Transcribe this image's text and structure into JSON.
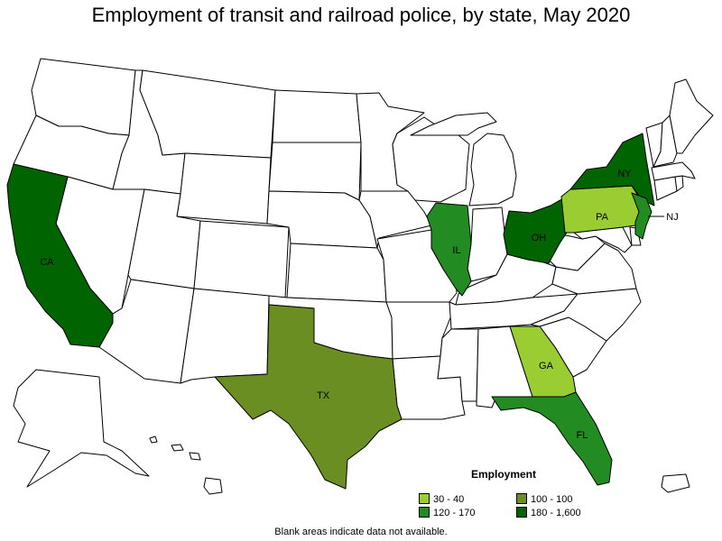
{
  "title": "Employment of transit and railroad police, by state, May 2020",
  "legend": {
    "title": "Employment",
    "items": [
      {
        "label": "30 - 40",
        "color": "#9acd32"
      },
      {
        "label": "100 - 100",
        "color": "#6b8e23"
      },
      {
        "label": "120 - 170",
        "color": "#228b22"
      },
      {
        "label": "180 - 1,600",
        "color": "#006400"
      }
    ]
  },
  "states": [
    {
      "abbr": "CA",
      "range": "180 - 1,600",
      "color": "#006400"
    },
    {
      "abbr": "NY",
      "range": "180 - 1,600",
      "color": "#006400"
    },
    {
      "abbr": "OH",
      "range": "180 - 1,600",
      "color": "#006400"
    },
    {
      "abbr": "IL",
      "range": "120 - 170",
      "color": "#228b22"
    },
    {
      "abbr": "FL",
      "range": "120 - 170",
      "color": "#228b22"
    },
    {
      "abbr": "NJ",
      "range": "120 - 170",
      "color": "#228b22"
    },
    {
      "abbr": "TX",
      "range": "100 - 100",
      "color": "#6b8e23"
    },
    {
      "abbr": "PA",
      "range": "30 - 40",
      "color": "#9acd32"
    },
    {
      "abbr": "GA",
      "range": "30 - 40",
      "color": "#9acd32"
    }
  ],
  "footnote": "Blank areas indicate data not available."
}
